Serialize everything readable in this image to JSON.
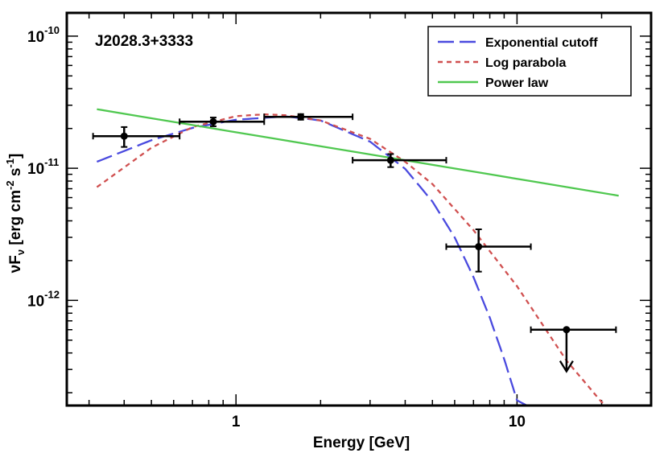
{
  "chart_data": {
    "type": "line",
    "title": "",
    "annotation": "J2028.3+3333",
    "xlabel": "Energy [GeV]",
    "ylabel": {
      "nu": "ν",
      "F": "F",
      "sub": "ν",
      "bracket": " [erg cm",
      "exp1": "-2",
      "s": " s",
      "exp2": "-1",
      "close": "]"
    },
    "xscale": "log",
    "yscale": "log",
    "xlim": [
      0.25,
      30
    ],
    "ylim": [
      1.6e-13,
      1.5e-10
    ],
    "x_ticks": [
      {
        "value": 1,
        "label": "1"
      },
      {
        "value": 10,
        "label": "10"
      }
    ],
    "y_ticks": [
      {
        "value": 1e-12,
        "base": "10",
        "exp": "-12"
      },
      {
        "value": 1e-11,
        "base": "10",
        "exp": "-11"
      },
      {
        "value": 1e-10,
        "base": "10",
        "exp": "-10"
      }
    ],
    "legend_position": "top-right",
    "series": [
      {
        "name": "Exponential cutoff",
        "color": "#4a4adf",
        "style": "long-dash",
        "x": [
          0.32,
          0.5,
          0.7,
          1.0,
          1.5,
          2.0,
          3.0,
          4.0,
          5.0,
          6.0,
          7.0,
          8.0,
          9.0,
          10.0,
          11.5
        ],
        "y": [
          1.12e-11,
          1.63e-11,
          2.02e-11,
          2.33e-11,
          2.47e-11,
          2.3e-11,
          1.59e-11,
          9.9e-12,
          5.6e-12,
          3e-12,
          1.5e-12,
          7.4e-13,
          3.6e-13,
          1.75e-13,
          1.5e-13
        ]
      },
      {
        "name": "Log parabola",
        "color": "#d05050",
        "style": "short-dash",
        "x": [
          0.32,
          0.5,
          0.7,
          1.0,
          1.26,
          1.5,
          2.0,
          3.0,
          4.0,
          5.0,
          7.0,
          10.0,
          15.0,
          20.0,
          21.5
        ],
        "y": [
          7.2e-12,
          1.43e-11,
          2.05e-11,
          2.48e-11,
          2.56e-11,
          2.52e-11,
          2.3e-11,
          1.67e-11,
          1.12e-11,
          7.6e-12,
          3.4e-12,
          1.28e-12,
          3.5e-13,
          1.7e-13,
          1.55e-13
        ]
      },
      {
        "name": "Power law",
        "color": "#50c850",
        "style": "solid",
        "x": [
          0.32,
          23
        ],
        "y": [
          2.8e-11,
          6.2e-12
        ]
      }
    ],
    "data_points": [
      {
        "x": 0.4,
        "xlo": 0.31,
        "xhi": 0.63,
        "y": 1.75e-11,
        "ylo": 1.45e-11,
        "yhi": 2.05e-11,
        "upper_limit": false
      },
      {
        "x": 0.83,
        "xlo": 0.63,
        "xhi": 1.26,
        "y": 2.25e-11,
        "ylo": 2.08e-11,
        "yhi": 2.42e-11,
        "upper_limit": false
      },
      {
        "x": 1.7,
        "xlo": 1.26,
        "xhi": 2.6,
        "y": 2.45e-11,
        "ylo": 2.33e-11,
        "yhi": 2.57e-11,
        "upper_limit": false
      },
      {
        "x": 3.55,
        "xlo": 2.6,
        "xhi": 5.6,
        "y": 1.15e-11,
        "ylo": 1.02e-11,
        "yhi": 1.28e-11,
        "upper_limit": false
      },
      {
        "x": 7.3,
        "xlo": 5.6,
        "xhi": 11.2,
        "y": 2.55e-12,
        "ylo": 1.65e-12,
        "yhi": 3.45e-12,
        "upper_limit": false
      },
      {
        "x": 15.0,
        "xlo": 11.2,
        "xhi": 22.5,
        "y": 6e-13,
        "ylo": 2.9e-13,
        "yhi": 6e-13,
        "upper_limit": true
      }
    ]
  }
}
